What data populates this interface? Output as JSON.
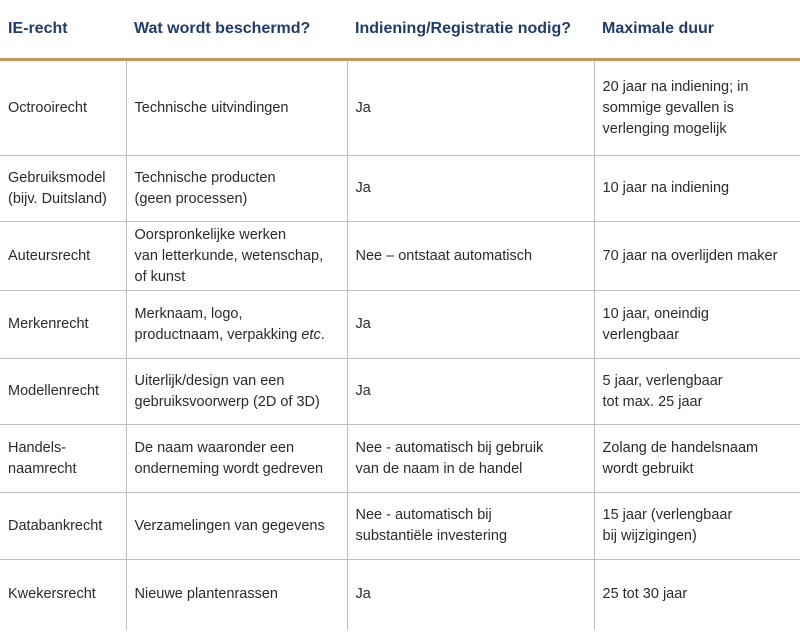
{
  "headers": [
    "IE-recht",
    "Wat wordt beschermd?",
    "Indiening/Registratie nodig?",
    "Maximale duur"
  ],
  "rows": [
    {
      "recht": [
        "Octrooirecht"
      ],
      "beschermd": [
        "Technische uitvindingen"
      ],
      "registratie": [
        "Ja"
      ],
      "duur": [
        "20 jaar na indiening; in",
        "sommige gevallen is",
        "verlenging mogelijk"
      ]
    },
    {
      "recht": [
        "Gebruiksmodel",
        "(bijv. Duitsland)"
      ],
      "beschermd": [
        "Technische producten",
        "(geen processen)"
      ],
      "registratie": [
        "Ja"
      ],
      "duur": [
        "10 jaar na indiening"
      ]
    },
    {
      "recht": [
        "Auteursrecht"
      ],
      "beschermd": [
        "Oorspronkelijke werken",
        "van letterkunde, wetenschap,",
        "of kunst"
      ],
      "registratie": [
        "Nee – ontstaat automatisch"
      ],
      "duur": [
        "70 jaar na overlijden maker"
      ]
    },
    {
      "recht": [
        "Merkenrecht"
      ],
      "beschermd": [
        "Merknaam, logo,",
        "productnaam, verpakking",
        "etc",
        "."
      ],
      "registratie": [
        "Ja"
      ],
      "duur": [
        "10 jaar, oneindig",
        "verlengbaar"
      ]
    },
    {
      "recht": [
        "Modellenrecht"
      ],
      "beschermd": [
        "Uiterlijk/design van een",
        "gebruiksvoorwerp (2D of 3D)"
      ],
      "registratie": [
        "Ja"
      ],
      "duur": [
        "5 jaar, verlengbaar",
        "tot max. 25 jaar"
      ]
    },
    {
      "recht": [
        "Handels-",
        "naamrecht"
      ],
      "beschermd": [
        "De naam waaronder een",
        "onderneming wordt gedreven"
      ],
      "registratie": [
        "Nee - automatisch bij gebruik",
        "van de naam in de handel"
      ],
      "duur": [
        "Zolang de handelsnaam",
        "wordt gebruikt"
      ]
    },
    {
      "recht": [
        "Databankrecht"
      ],
      "beschermd": [
        "Verzamelingen van gegevens"
      ],
      "registratie": [
        "Nee - automatisch bij",
        "substantiële investering"
      ],
      "duur": [
        "15 jaar (verlengbaar",
        "bij wijzigingen)"
      ]
    },
    {
      "recht": [
        "Kwekersrecht"
      ],
      "beschermd": [
        "Nieuwe plantenrassen"
      ],
      "registratie": [
        "Ja"
      ],
      "duur": [
        "25 tot 30 jaar"
      ]
    }
  ]
}
